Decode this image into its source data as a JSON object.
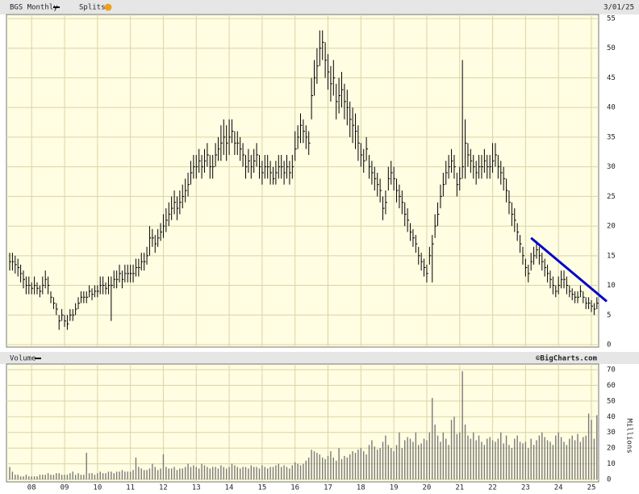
{
  "chart_data": [
    {
      "type": "ohlc",
      "title": "BGS Monthly",
      "splits_label": "Splits",
      "date": "3/01/25",
      "color": "#000000",
      "grid": true,
      "ylim": [
        0,
        55
      ],
      "yticks": [
        0,
        5,
        10,
        15,
        20,
        25,
        30,
        35,
        40,
        45,
        50,
        55
      ],
      "high": [
        15.5,
        15.5,
        15,
        14.5,
        13.5,
        12.5,
        11.5,
        11.5,
        10.5,
        11.5,
        10.5,
        10,
        11.5,
        12.5,
        11.5,
        9,
        8,
        7,
        5,
        6,
        5,
        5,
        6,
        6,
        7,
        8,
        9,
        9,
        9,
        10,
        9.5,
        10,
        10,
        11.5,
        11.5,
        10.5,
        11.5,
        11.5,
        12.5,
        12.5,
        13.5,
        12.5,
        13.5,
        13.5,
        13.5,
        13.5,
        14.5,
        14.5,
        15.5,
        15.5,
        16.5,
        20,
        19.5,
        18.5,
        19.5,
        20.5,
        22,
        23,
        24,
        25,
        26,
        25,
        26,
        27,
        28,
        29,
        31,
        32,
        32,
        33,
        32,
        33,
        34,
        32,
        32,
        34,
        35,
        37,
        38,
        37,
        38,
        38,
        36,
        36,
        35,
        34,
        32,
        33,
        32,
        33,
        34,
        32,
        31,
        32,
        32,
        31,
        30,
        31,
        32,
        32,
        31,
        32,
        31,
        32,
        36,
        37,
        39,
        38,
        37,
        36,
        45,
        48,
        50,
        53,
        53,
        51,
        49,
        47,
        48,
        44,
        45,
        46,
        44,
        43,
        41,
        40,
        39,
        37,
        34,
        33,
        35,
        32,
        31,
        30,
        29,
        28,
        25,
        26,
        30,
        31,
        30,
        28,
        27,
        26,
        24,
        23,
        20.5,
        19.5,
        18.5,
        16.5,
        15.5,
        14.5,
        13.5,
        16.5,
        18.5,
        22,
        24,
        27,
        29,
        31,
        32,
        33,
        32,
        29,
        30,
        48,
        38,
        34,
        33,
        32,
        31,
        32,
        32,
        33,
        32,
        32,
        34,
        34,
        32,
        31,
        30,
        28,
        26,
        24,
        23,
        20.5,
        18.5,
        16.5,
        14.5,
        13.5,
        15.5,
        16.5,
        17.5,
        16.5,
        15.5,
        14.5,
        13.5,
        12.5,
        11.5,
        10,
        11.5,
        12.5,
        12.5,
        11.5,
        10,
        9.5,
        9,
        9,
        10,
        9,
        8,
        8,
        7.5,
        7,
        8
      ],
      "low": [
        12.5,
        12.5,
        12,
        11.5,
        10.5,
        9.5,
        8.5,
        8.5,
        8.5,
        8.5,
        8.5,
        8,
        8.5,
        9.5,
        8.5,
        7,
        6,
        5,
        2.5,
        4,
        3,
        2.5,
        4,
        4,
        5,
        6,
        7,
        7,
        7,
        8,
        7.5,
        8,
        8,
        8.5,
        8.5,
        8.5,
        8.5,
        4,
        9.5,
        9.5,
        10.5,
        9.5,
        10.5,
        10.5,
        10.5,
        10.5,
        11.5,
        11.5,
        12.5,
        12.5,
        13.5,
        15,
        16.5,
        15.5,
        16.5,
        17.5,
        18,
        19,
        20,
        21,
        22,
        21,
        22,
        23,
        24,
        25,
        27,
        28,
        28,
        29,
        28,
        29,
        30,
        28,
        28,
        30,
        31,
        31,
        32,
        31,
        32,
        34,
        32,
        32,
        31,
        30,
        28,
        29,
        28,
        29,
        30,
        28,
        27,
        28,
        28,
        27,
        27,
        27,
        28,
        28,
        27,
        28,
        27,
        28,
        31,
        33,
        34,
        34,
        33,
        32,
        38,
        42,
        44,
        47,
        48,
        45,
        43,
        41,
        42,
        38,
        39,
        40,
        38,
        37,
        35,
        34,
        33,
        31,
        30,
        29,
        31,
        28,
        27,
        26,
        25,
        24,
        21,
        22,
        26,
        27,
        26,
        24,
        23,
        22,
        20,
        19,
        17.5,
        16.5,
        15.5,
        13.5,
        12.5,
        11.5,
        10.5,
        13.5,
        10.5,
        18,
        20,
        23,
        25,
        27,
        28,
        29,
        28,
        25,
        26,
        28,
        28,
        30,
        29,
        28,
        27,
        28,
        28,
        29,
        28,
        28,
        29,
        30,
        28,
        27,
        26,
        24,
        22,
        20,
        19,
        17.5,
        15.5,
        13.5,
        11.5,
        10.5,
        12.5,
        13.5,
        14.5,
        13.5,
        12.5,
        11.5,
        10.5,
        9.5,
        8.5,
        8,
        8.5,
        9.5,
        9.5,
        8.5,
        8,
        7.5,
        7,
        7,
        8,
        7,
        6,
        6,
        5.5,
        5,
        6
      ],
      "close": [
        14,
        14,
        13.5,
        13,
        12,
        11,
        10,
        10,
        9.5,
        10,
        9.5,
        9,
        10,
        11,
        10,
        8,
        7,
        6,
        4,
        5,
        4,
        3.5,
        5,
        5,
        6,
        7,
        8,
        8,
        8,
        9,
        8.5,
        9,
        9,
        10,
        10,
        9.5,
        10,
        10,
        11,
        11,
        12,
        11,
        12,
        12,
        12,
        12,
        13,
        13,
        14,
        14,
        15,
        18,
        18,
        17,
        18,
        19,
        20,
        21,
        22,
        23,
        24,
        23,
        24,
        25,
        26,
        27,
        29,
        30,
        30,
        31,
        30,
        31,
        32,
        30,
        30,
        32,
        33,
        34,
        35,
        34,
        35,
        36,
        34,
        34,
        33,
        32,
        30,
        31,
        30,
        31,
        32,
        30,
        29,
        30,
        30,
        29,
        28,
        29,
        30,
        30,
        29,
        30,
        29,
        30,
        33,
        35,
        37,
        36,
        35,
        34,
        42,
        45,
        47,
        50,
        51,
        48,
        46,
        44,
        45,
        41,
        42,
        43,
        41,
        40,
        38,
        37,
        36,
        34,
        32,
        31,
        33,
        30,
        29,
        28,
        27,
        26,
        23,
        24,
        28,
        29,
        28,
        26,
        25,
        24,
        22,
        21,
        19,
        18,
        17,
        15,
        14,
        13,
        12,
        15,
        17,
        20,
        22,
        25,
        27,
        29,
        30,
        31,
        30,
        27,
        28,
        30,
        34,
        32,
        31,
        30,
        29,
        30,
        30,
        31,
        30,
        30,
        31,
        32,
        30,
        29,
        28,
        26,
        24,
        22,
        21,
        19,
        17,
        15,
        13,
        12,
        14,
        15,
        16,
        15,
        14,
        13,
        12,
        11,
        10,
        9,
        10,
        11,
        11,
        10,
        9,
        8.5,
        8,
        8,
        9,
        8,
        7,
        7,
        6.5,
        6,
        7
      ],
      "trend_line": {
        "color": "#0000cc",
        "y_start": 18,
        "y_end": 7.3
      }
    },
    {
      "type": "bar",
      "title": "Volume",
      "source": "©BigCharts.com",
      "y_label": "Millions",
      "color": "#7a7a7a",
      "grid": true,
      "ylim": [
        0,
        70
      ],
      "yticks": [
        0,
        10,
        20,
        30,
        40,
        50,
        60,
        70
      ],
      "categories": [
        null,
        null,
        null,
        null,
        null,
        null,
        null,
        null,
        "08",
        null,
        null,
        null,
        null,
        null,
        null,
        null,
        null,
        null,
        null,
        null,
        "09",
        null,
        null,
        null,
        null,
        null,
        null,
        null,
        null,
        null,
        null,
        null,
        "10",
        null,
        null,
        null,
        null,
        null,
        null,
        null,
        null,
        null,
        null,
        null,
        "11",
        null,
        null,
        null,
        null,
        null,
        null,
        null,
        null,
        null,
        null,
        null,
        "12",
        null,
        null,
        null,
        null,
        null,
        null,
        null,
        null,
        null,
        null,
        null,
        "13",
        null,
        null,
        null,
        null,
        null,
        null,
        null,
        null,
        null,
        null,
        null,
        "14",
        null,
        null,
        null,
        null,
        null,
        null,
        null,
        null,
        null,
        null,
        null,
        "15",
        null,
        null,
        null,
        null,
        null,
        null,
        null,
        null,
        null,
        null,
        null,
        "16",
        null,
        null,
        null,
        null,
        null,
        null,
        null,
        null,
        null,
        null,
        null,
        "17",
        null,
        null,
        null,
        null,
        null,
        null,
        null,
        null,
        null,
        null,
        null,
        "18",
        null,
        null,
        null,
        null,
        null,
        null,
        null,
        null,
        null,
        null,
        null,
        "19",
        null,
        null,
        null,
        null,
        null,
        null,
        null,
        null,
        null,
        null,
        null,
        "20",
        null,
        null,
        null,
        null,
        null,
        null,
        null,
        null,
        null,
        null,
        null,
        "21",
        null,
        null,
        null,
        null,
        null,
        null,
        null,
        null,
        null,
        null,
        null,
        "22",
        null,
        null,
        null,
        null,
        null,
        null,
        null,
        null,
        null,
        null,
        null,
        "23",
        null,
        null,
        null,
        null,
        null,
        null,
        null,
        null,
        null,
        null,
        null,
        "24",
        null,
        null,
        null,
        null,
        null,
        null,
        null,
        null,
        null,
        null,
        null,
        "25",
        null,
        null
      ],
      "values": [
        8,
        5,
        3,
        3,
        2,
        2,
        3,
        2,
        2,
        2,
        2,
        3,
        3,
        3,
        4,
        3,
        3,
        4,
        4,
        3,
        3,
        3,
        4,
        5,
        3,
        4,
        3,
        3,
        17,
        4,
        4,
        3,
        4,
        5,
        4,
        4,
        5,
        5,
        4,
        5,
        5,
        6,
        5,
        5,
        5,
        6,
        14,
        8,
        7,
        6,
        6,
        7,
        10,
        8,
        6,
        7,
        16,
        8,
        7,
        7,
        8,
        6,
        7,
        7,
        8,
        10,
        8,
        9,
        8,
        7,
        10,
        9,
        8,
        7,
        8,
        8,
        7,
        9,
        8,
        7,
        8,
        10,
        9,
        8,
        7,
        8,
        8,
        7,
        9,
        8,
        8,
        7,
        9,
        8,
        7,
        8,
        8,
        9,
        10,
        8,
        9,
        8,
        7,
        9,
        11,
        10,
        9,
        10,
        12,
        14,
        19,
        18,
        17,
        16,
        14,
        13,
        15,
        18,
        14,
        12,
        20,
        13,
        15,
        14,
        16,
        18,
        17,
        19,
        20,
        18,
        16,
        22,
        25,
        21,
        19,
        20,
        24,
        28,
        22,
        20,
        18,
        22,
        30,
        20,
        25,
        27,
        26,
        24,
        30,
        22,
        23,
        26,
        25,
        30,
        52,
        35,
        28,
        24,
        30,
        26,
        22,
        38,
        40,
        29,
        30,
        69,
        35,
        28,
        26,
        30,
        25,
        28,
        24,
        22,
        26,
        27,
        25,
        24,
        26,
        30,
        23,
        28,
        22,
        20,
        26,
        28,
        24,
        23,
        24,
        20,
        26,
        22,
        25,
        28,
        30,
        27,
        25,
        24,
        22,
        28,
        30,
        27,
        24,
        22,
        26,
        28,
        25,
        29,
        24,
        27,
        28,
        42,
        38,
        26,
        41
      ]
    }
  ]
}
